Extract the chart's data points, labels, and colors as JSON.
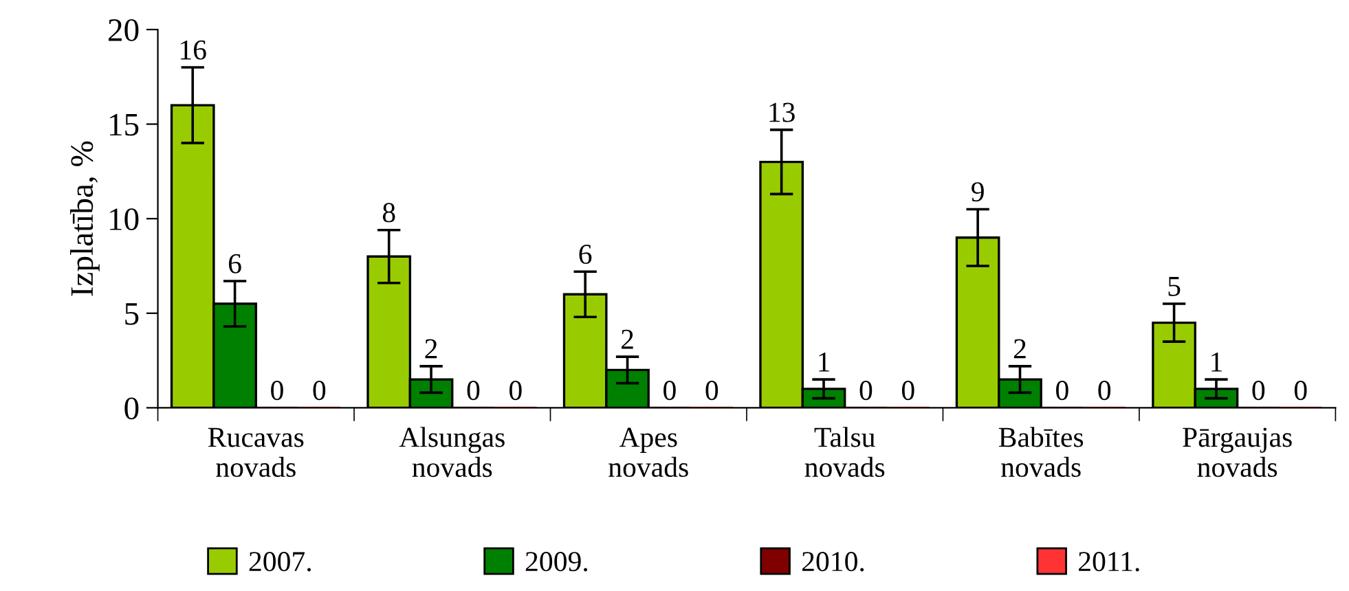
{
  "chart_data": {
    "type": "bar",
    "ylabel": "Izplatība, %",
    "categories": [
      "Rucavas\nnovads",
      "Alsungas\nnovads",
      "Apes\nnovads",
      "Talsu\nnovads",
      "Babītes\nnovads",
      "Pārgaujas\nnovads"
    ],
    "series": [
      {
        "name": "2007.",
        "color": "#99cc00",
        "values": [
          16,
          8,
          6,
          13,
          9,
          4.5
        ],
        "errors": [
          2,
          1.4,
          1.2,
          1.7,
          1.5,
          1.0
        ],
        "value_labels": [
          "16",
          "8",
          "6",
          "13",
          "9",
          "5"
        ]
      },
      {
        "name": "2009.",
        "color": "#008000",
        "values": [
          5.5,
          1.5,
          2,
          1,
          1.5,
          1
        ],
        "errors": [
          1.2,
          0.7,
          0.7,
          0.5,
          0.7,
          0.5
        ],
        "value_labels": [
          "6",
          "2",
          "2",
          "1",
          "2",
          "1"
        ]
      },
      {
        "name": "2010.",
        "color": "#800000",
        "values": [
          0,
          0,
          0,
          0,
          0,
          0
        ],
        "value_labels": [
          "0",
          "0",
          "0",
          "0",
          "0",
          "0"
        ]
      },
      {
        "name": "2011.",
        "color": "#ff3333",
        "values": [
          0,
          0,
          0,
          0,
          0,
          0
        ],
        "value_labels": [
          "0",
          "0",
          "0",
          "0",
          "0",
          "0"
        ]
      }
    ],
    "ylim": [
      0,
      20
    ],
    "yticks": [
      0,
      5,
      10,
      15,
      20
    ],
    "grid": false,
    "legend": "bottom"
  }
}
